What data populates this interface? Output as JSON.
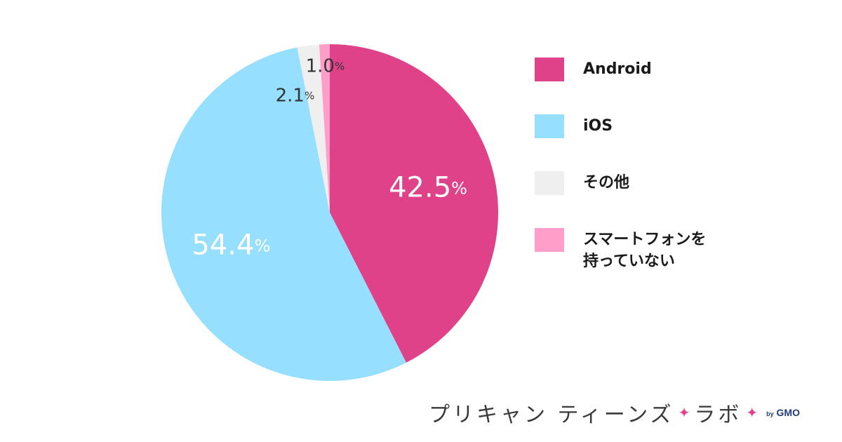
{
  "chart_data": {
    "type": "pie",
    "slices": [
      {
        "name": "Android",
        "value": 42.5,
        "color": "#e0428a",
        "label": "42.5",
        "label_color": "#ffffff"
      },
      {
        "name": "スマートフォンを持っていない",
        "value": 1.0,
        "color": "#ff9ec8",
        "label": "1.0",
        "label_color": "#333333"
      },
      {
        "name": "その他",
        "value": 2.1,
        "color": "#efefef",
        "label": "2.1",
        "label_color": "#333333"
      },
      {
        "name": "iOS",
        "value": 54.4,
        "color": "#96dfff",
        "label": "54.4",
        "label_color": "#ffffff"
      }
    ],
    "unit": "%",
    "start_direction": "top",
    "direction": "clockwise-for-android-first"
  },
  "legend": {
    "items": [
      {
        "label": "Android",
        "color": "#e0428a"
      },
      {
        "label": "iOS",
        "color": "#96dfff"
      },
      {
        "label": "その他",
        "color": "#efefef"
      },
      {
        "label": "スマートフォンを持っていない",
        "color": "#ff9ec8"
      }
    ]
  },
  "brand": {
    "text_left": "プリキャン ティーンズ",
    "text_right": "ラボ",
    "by": "by",
    "company": "GMO",
    "star_color": "#e0428a"
  }
}
